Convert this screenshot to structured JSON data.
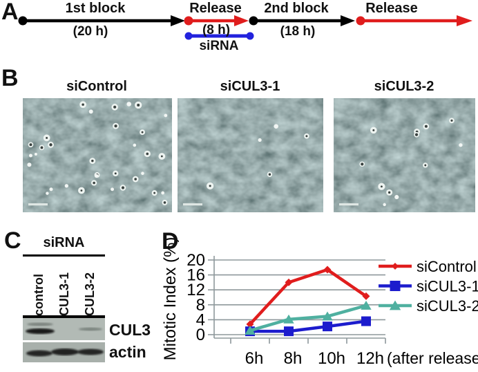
{
  "colors": {
    "red": "#e01d1d",
    "blue_timeline": "#2222dd",
    "blue_series": "#1c1ccd",
    "teal": "#4fb0a0",
    "axis_gray": "#8e989b",
    "blot_bg_top": "#b2bab5",
    "blot_bg_bottom": "#a8b0ab"
  },
  "panels": {
    "a": {
      "label": "A",
      "first_block": {
        "name": "1st block",
        "duration": "(20 h)"
      },
      "release1": {
        "name": "Release",
        "duration": "(8 h)"
      },
      "second_block": {
        "name": "2nd block",
        "duration": "(18 h)"
      },
      "release2": {
        "name": "Release"
      },
      "sirna_label": "siRNA"
    },
    "b": {
      "label": "B",
      "images": [
        {
          "label": "siControl",
          "bright_cells": 34,
          "seed": 11
        },
        {
          "label": "siCUL3-1",
          "bright_cells": 5,
          "seed": 52
        },
        {
          "label": "siCUL3-2",
          "bright_cells": 12,
          "seed": 83
        }
      ]
    },
    "c": {
      "label": "C",
      "header": "siRNA",
      "lanes": [
        "control",
        "CUL3-1",
        "CUL3-2"
      ],
      "blots": [
        {
          "label": "CUL3",
          "band_intensity": [
            1,
            0,
            0.18
          ]
        },
        {
          "label": "actin",
          "band_intensity": [
            1,
            1,
            1
          ]
        }
      ]
    },
    "d": {
      "label": "D"
    }
  },
  "chart_data": {
    "type": "line",
    "x": [
      "6h",
      "8h",
      "10h",
      "12h"
    ],
    "x_suffix": "(after release)",
    "ylabel": "Mitotic Index (%)",
    "yticks": [
      0,
      4,
      8,
      12,
      16,
      20
    ],
    "ylim": [
      0,
      20
    ],
    "grid": true,
    "legend_position": "right",
    "series": [
      {
        "name": "siControl",
        "values": [
          2.8,
          14,
          17.4,
          10.3
        ],
        "color": "#e01d1d",
        "marker": "diamond"
      },
      {
        "name": "siCUL3-1",
        "values": [
          0.9,
          0.9,
          2.2,
          3.6
        ],
        "color": "#1c1ccd",
        "marker": "square"
      },
      {
        "name": "siCUL3-2",
        "values": [
          1.1,
          4.1,
          4.9,
          7.8
        ],
        "color": "#4fb0a0",
        "marker": "triangle"
      }
    ]
  }
}
